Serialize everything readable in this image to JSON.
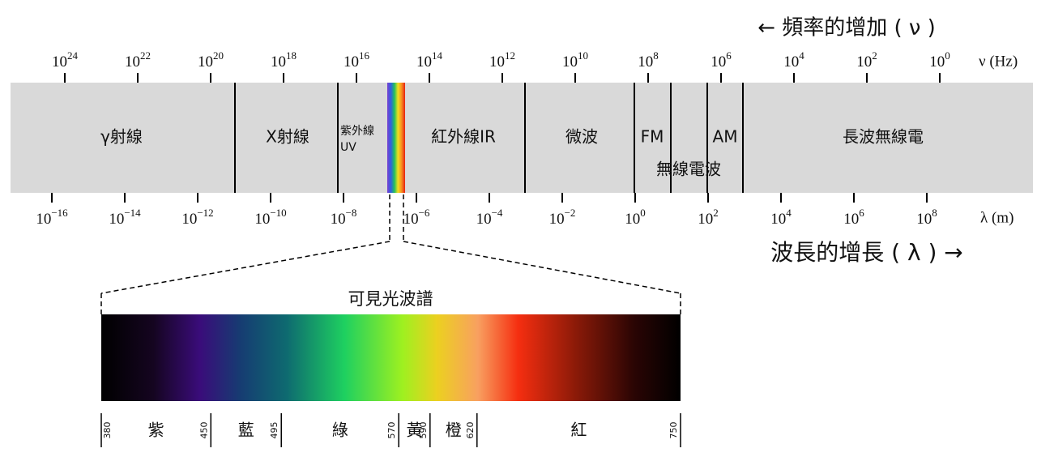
{
  "top_axis": {
    "title": "← 頻率的增加 ( ν )",
    "unit": "ν (Hz)",
    "ticks": [
      {
        "base": "10",
        "exponent": "24"
      },
      {
        "base": "10",
        "exponent": "22"
      },
      {
        "base": "10",
        "exponent": "20"
      },
      {
        "base": "10",
        "exponent": "18"
      },
      {
        "base": "10",
        "exponent": "16"
      },
      {
        "base": "10",
        "exponent": "14"
      },
      {
        "base": "10",
        "exponent": "12"
      },
      {
        "base": "10",
        "exponent": "10"
      },
      {
        "base": "10",
        "exponent": "8"
      },
      {
        "base": "10",
        "exponent": "6"
      },
      {
        "base": "10",
        "exponent": "4"
      },
      {
        "base": "10",
        "exponent": "2"
      },
      {
        "base": "10",
        "exponent": "0"
      }
    ]
  },
  "bottom_axis": {
    "title": "波長的增長 ( λ )  →",
    "unit": "λ (m)",
    "ticks": [
      {
        "base": "10",
        "exponent": "−16"
      },
      {
        "base": "10",
        "exponent": "−14"
      },
      {
        "base": "10",
        "exponent": "−12"
      },
      {
        "base": "10",
        "exponent": "−10"
      },
      {
        "base": "10",
        "exponent": "−8"
      },
      {
        "base": "10",
        "exponent": "−6"
      },
      {
        "base": "10",
        "exponent": "−4"
      },
      {
        "base": "10",
        "exponent": "−2"
      },
      {
        "base": "10",
        "exponent": "0"
      },
      {
        "base": "10",
        "exponent": "2"
      },
      {
        "base": "10",
        "exponent": "4"
      },
      {
        "base": "10",
        "exponent": "6"
      },
      {
        "base": "10",
        "exponent": "8"
      }
    ]
  },
  "bands": [
    "γ射線",
    "X射線",
    "紫外線",
    "UV",
    "紅外線IR",
    "微波",
    "FM",
    "AM",
    "無線電波",
    "長波無線電"
  ],
  "visible": {
    "title": "可見光波譜",
    "colors": [
      "紫",
      "藍",
      "綠",
      "黃",
      "橙",
      "紅"
    ],
    "wavelengths": [
      380,
      450,
      495,
      570,
      590,
      620,
      750
    ]
  }
}
